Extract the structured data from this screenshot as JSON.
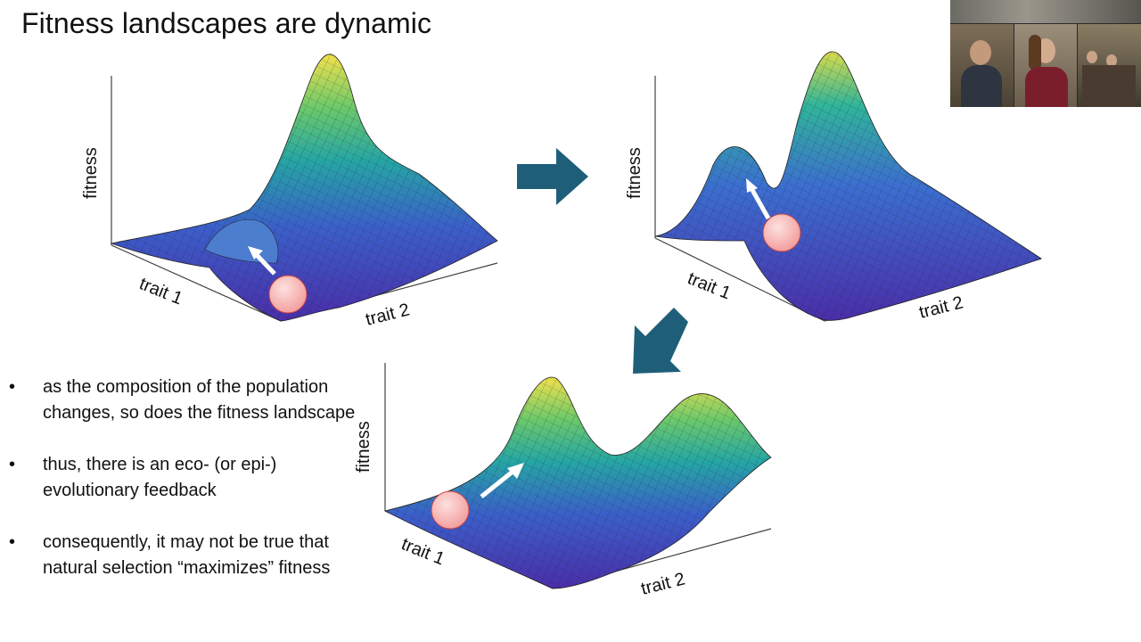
{
  "slide": {
    "title": "Fitness landscapes are dynamic"
  },
  "plots": [
    {
      "ylabel": "fitness",
      "xlabel1": "trait 1",
      "xlabel2": "trait 2"
    },
    {
      "ylabel": "fitness",
      "xlabel1": "trait 1",
      "xlabel2": "trait 2"
    },
    {
      "ylabel": "fitness",
      "xlabel1": "trait 1",
      "xlabel2": "trait 2"
    }
  ],
  "bullets": [
    "as the composition of the population changes, so does the fitness landscape",
    "thus, there is an eco- (or epi-) evolutionary feedback",
    "consequently, it may not be true that natural selection “maximizes” fitness"
  ],
  "bullet_marker": "•",
  "colors": {
    "arrow": "#1f5e78",
    "ball": "#f4a3a3",
    "surface_low": "#4b2fa8",
    "surface_mid": "#2aa7a0",
    "surface_high": "#f2e14a"
  }
}
